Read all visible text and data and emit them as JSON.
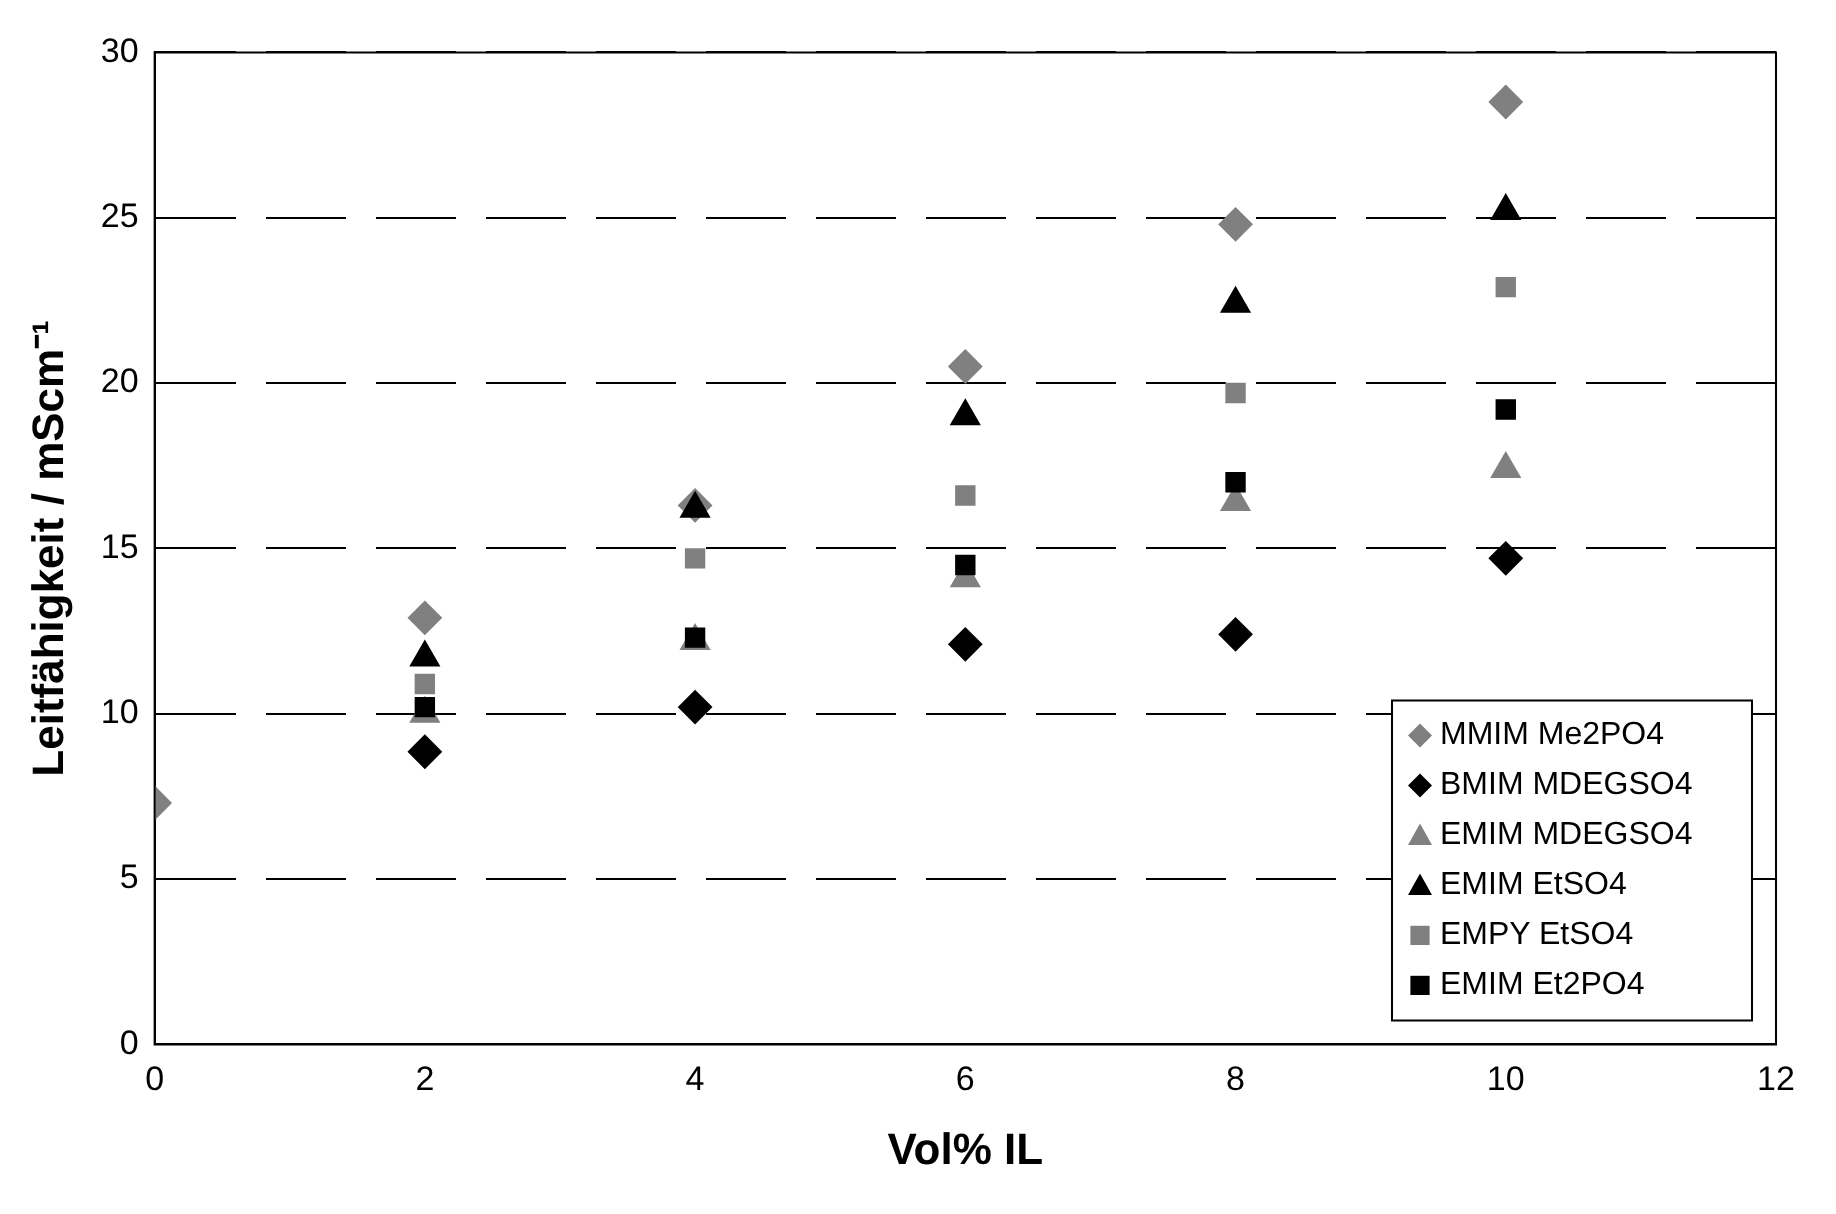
{
  "chart_data": {
    "type": "scatter",
    "xlabel": "Vol% IL",
    "ylabel": "Leitfähigkeit / mScm⁻¹",
    "x": [
      0,
      2,
      4,
      6,
      8,
      10
    ],
    "xlim": [
      0,
      12
    ],
    "xticks": [
      0,
      2,
      4,
      6,
      8,
      10,
      12
    ],
    "ylim": [
      0,
      30
    ],
    "yticks": [
      0,
      5,
      10,
      15,
      20,
      25,
      30
    ],
    "grid": "y",
    "line_style": "dashed",
    "legend": "bottom right",
    "series": [
      {
        "name": "MMIM Me2PO4",
        "color": "#808080",
        "marker": "diamond",
        "values": [
          7.3,
          12.9,
          16.3,
          20.5,
          24.8,
          28.5
        ]
      },
      {
        "name": "BMIM MDEGSO4",
        "color": "#000000",
        "marker": "diamond",
        "values": [
          null,
          8.85,
          10.2,
          12.1,
          12.4,
          14.7
        ]
      },
      {
        "name": "EMIM MDEGSO4",
        "color": "#808080",
        "marker": "triangle",
        "values": [
          null,
          10.0,
          12.2,
          14.1,
          16.4,
          17.4
        ]
      },
      {
        "name": "EMIM EtSO4",
        "color": "#000000",
        "marker": "triangle",
        "values": [
          null,
          11.7,
          16.2,
          19.0,
          22.4,
          25.2
        ]
      },
      {
        "name": "EMPY EtSO4",
        "color": "#808080",
        "marker": "square",
        "values": [
          null,
          10.9,
          14.7,
          16.6,
          19.7,
          22.9
        ]
      },
      {
        "name": "EMIM Et2PO4",
        "color": "#000000",
        "marker": "square",
        "values": [
          null,
          10.2,
          12.3,
          14.5,
          17.0,
          19.2
        ]
      }
    ]
  }
}
